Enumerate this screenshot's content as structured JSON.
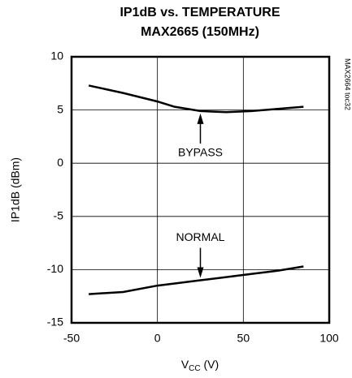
{
  "chart_data": {
    "type": "line",
    "title": [
      "IP1dB vs. TEMPERATURE",
      "MAX2665 (150MHz)"
    ],
    "side_note": "MAX2664 toc32",
    "y_label": "IP1dB (dBm)",
    "x_label": [
      "V",
      "CC",
      " (V)"
    ],
    "x": [
      -40,
      -20,
      0,
      10,
      25,
      40,
      55,
      70,
      85
    ],
    "series": [
      {
        "name": "BYPASS",
        "color": "#000000",
        "values": [
          7.3,
          6.6,
          5.8,
          5.3,
          4.9,
          4.8,
          4.9,
          5.1,
          5.3
        ]
      },
      {
        "name": "NORMAL",
        "color": "#000000",
        "values": [
          -12.3,
          -12.1,
          -11.5,
          -11.3,
          -11.0,
          -10.7,
          -10.4,
          -10.1,
          -9.7
        ]
      }
    ],
    "xlim": [
      -50,
      100
    ],
    "xticks": [
      -50,
      0,
      50,
      100
    ],
    "ylim": [
      -15,
      10
    ],
    "yticks": [
      -15,
      -10,
      -5,
      0,
      5,
      10
    ],
    "grid": true
  }
}
